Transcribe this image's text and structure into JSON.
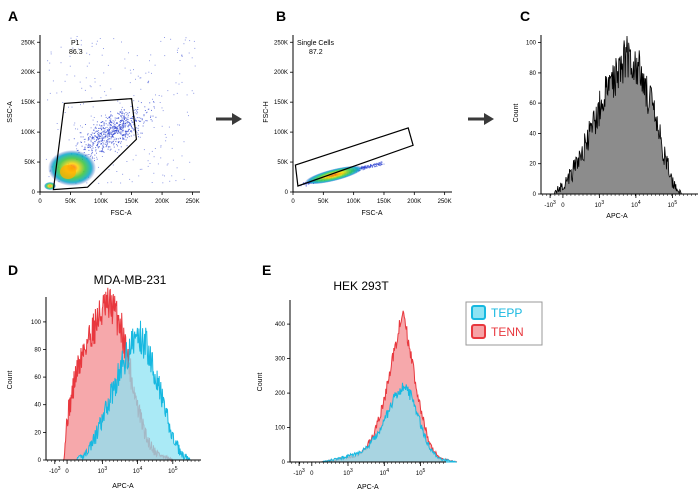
{
  "colors": {
    "axis": "#000000",
    "histogram_gray": "#8c8c8c",
    "tepp_fill": "#8ee3f3",
    "tepp_line": "#17b8e0",
    "tenn_fill": "#f6a3a6",
    "tenn_line": "#e8383e",
    "overlap_fill": "#9aa8b8",
    "gate": "#000000",
    "arrow": "#3a3a3a"
  },
  "chart_data": [
    {
      "panel": "A",
      "type": "scatter",
      "title": "",
      "xlabel": "FSC-A",
      "ylabel": "SSC-A",
      "xlim": [
        0,
        262144
      ],
      "ylim": [
        0,
        262144
      ],
      "xticks": [
        "0",
        "50K",
        "100K",
        "150K",
        "200K",
        "250K"
      ],
      "yticks": [
        "0",
        "50K",
        "100K",
        "150K",
        "200K",
        "250K"
      ],
      "gate": {
        "name": "P1",
        "percent": "86.3",
        "vertices_data": [
          [
            22000,
            4000
          ],
          [
            40000,
            148000
          ],
          [
            150000,
            156000
          ],
          [
            158000,
            88000
          ],
          [
            112000,
            42000
          ],
          [
            78000,
            8000
          ]
        ]
      },
      "population": {
        "center_x": 50000,
        "center_y": 40000,
        "note": "dense density-colored population"
      }
    },
    {
      "panel": "B",
      "type": "scatter",
      "title": "",
      "xlabel": "FSC-A",
      "ylabel": "FSC-H",
      "xlim": [
        0,
        262144
      ],
      "ylim": [
        0,
        262144
      ],
      "xticks": [
        "0",
        "50K",
        "100K",
        "150K",
        "200K",
        "250K"
      ],
      "yticks": [
        "0",
        "50K",
        "100K",
        "150K",
        "200K",
        "250K"
      ],
      "gate": {
        "name": "Single Cells",
        "percent": "87.2",
        "vertices_data": [
          [
            4000,
            45000
          ],
          [
            8000,
            10000
          ],
          [
            198000,
            78000
          ],
          [
            190000,
            107000
          ]
        ]
      },
      "population": {
        "center_x": 70000,
        "center_y": 28000,
        "note": "diagonal singlet population"
      }
    },
    {
      "panel": "C",
      "type": "area",
      "title": "",
      "xlabel": "APC-A",
      "ylabel": "Count",
      "ylim": [
        0,
        105
      ],
      "yticks": [
        "0",
        "20",
        "40",
        "60",
        "80",
        "100"
      ],
      "xticks": [
        {
          "base": "-10",
          "exp": "3"
        },
        {
          "base": "0",
          "exp": ""
        },
        {
          "base": "10",
          "exp": "3"
        },
        {
          "base": "10",
          "exp": "4"
        },
        {
          "base": "10",
          "exp": "5"
        }
      ],
      "series": [
        {
          "name": "APC-A",
          "x": [
            0.5,
            1.0,
            1.5,
            2.0,
            2.5,
            3.0,
            3.5,
            4.0,
            4.5,
            5.0,
            5.5,
            6.0,
            6.5,
            7.0,
            7.5
          ],
          "values": [
            0,
            6,
            14,
            26,
            40,
            56,
            70,
            82,
            92,
            86,
            72,
            52,
            28,
            8,
            0
          ]
        }
      ]
    },
    {
      "panel": "D",
      "type": "area",
      "title": "MDA-MB-231",
      "xlabel": "APC-A",
      "ylabel": "Count",
      "ylim": [
        0,
        118
      ],
      "yticks": [
        "0",
        "20",
        "40",
        "60",
        "80",
        "100"
      ],
      "xticks": [
        {
          "base": "-10",
          "exp": "3"
        },
        {
          "base": "0",
          "exp": ""
        },
        {
          "base": "10",
          "exp": "3"
        },
        {
          "base": "10",
          "exp": "4"
        },
        {
          "base": "10",
          "exp": "5"
        }
      ],
      "series": [
        {
          "name": "TENN",
          "x": [
            0.8,
            1.0,
            1.5,
            2.0,
            2.5,
            3.0,
            3.5,
            4.0,
            4.5,
            5.0,
            5.5,
            6.0,
            6.5,
            7.0
          ],
          "values": [
            0,
            30,
            62,
            82,
            96,
            108,
            112,
            100,
            70,
            38,
            16,
            6,
            2,
            0
          ]
        },
        {
          "name": "TEPP",
          "x": [
            1.5,
            2.0,
            2.5,
            3.0,
            3.5,
            4.0,
            4.5,
            5.0,
            5.5,
            6.0,
            6.5,
            7.0,
            7.5,
            8.0
          ],
          "values": [
            0,
            4,
            14,
            28,
            48,
            64,
            80,
            90,
            84,
            64,
            38,
            16,
            4,
            0
          ]
        }
      ]
    },
    {
      "panel": "E",
      "type": "area",
      "title": "HEK 293T",
      "xlabel": "APC-A",
      "ylabel": "Count",
      "ylim": [
        0,
        470
      ],
      "yticks": [
        "0",
        "100",
        "200",
        "300",
        "400"
      ],
      "xticks": [
        {
          "base": "-10",
          "exp": "3"
        },
        {
          "base": "0",
          "exp": ""
        },
        {
          "base": "10",
          "exp": "3"
        },
        {
          "base": "10",
          "exp": "4"
        },
        {
          "base": "10",
          "exp": "5"
        }
      ],
      "series": [
        {
          "name": "TENN",
          "x": [
            1.5,
            2.5,
            3.5,
            4.0,
            4.5,
            5.0,
            5.5,
            6.0,
            6.5,
            7.0,
            7.5,
            8.0,
            9.0
          ],
          "values": [
            0,
            8,
            20,
            40,
            90,
            180,
            310,
            440,
            300,
            150,
            50,
            12,
            0
          ]
        },
        {
          "name": "TEPP",
          "x": [
            1.5,
            2.5,
            3.5,
            4.0,
            4.5,
            5.0,
            5.5,
            6.0,
            6.5,
            7.0,
            7.5,
            8.0,
            9.0
          ],
          "values": [
            0,
            10,
            24,
            40,
            70,
            120,
            180,
            220,
            190,
            110,
            40,
            10,
            0
          ]
        }
      ]
    }
  ],
  "panels": {
    "a": "A",
    "b": "B",
    "c": "C",
    "d": "D",
    "e": "E"
  },
  "legend": [
    {
      "label": "TEPP"
    },
    {
      "label": "TENN"
    }
  ]
}
